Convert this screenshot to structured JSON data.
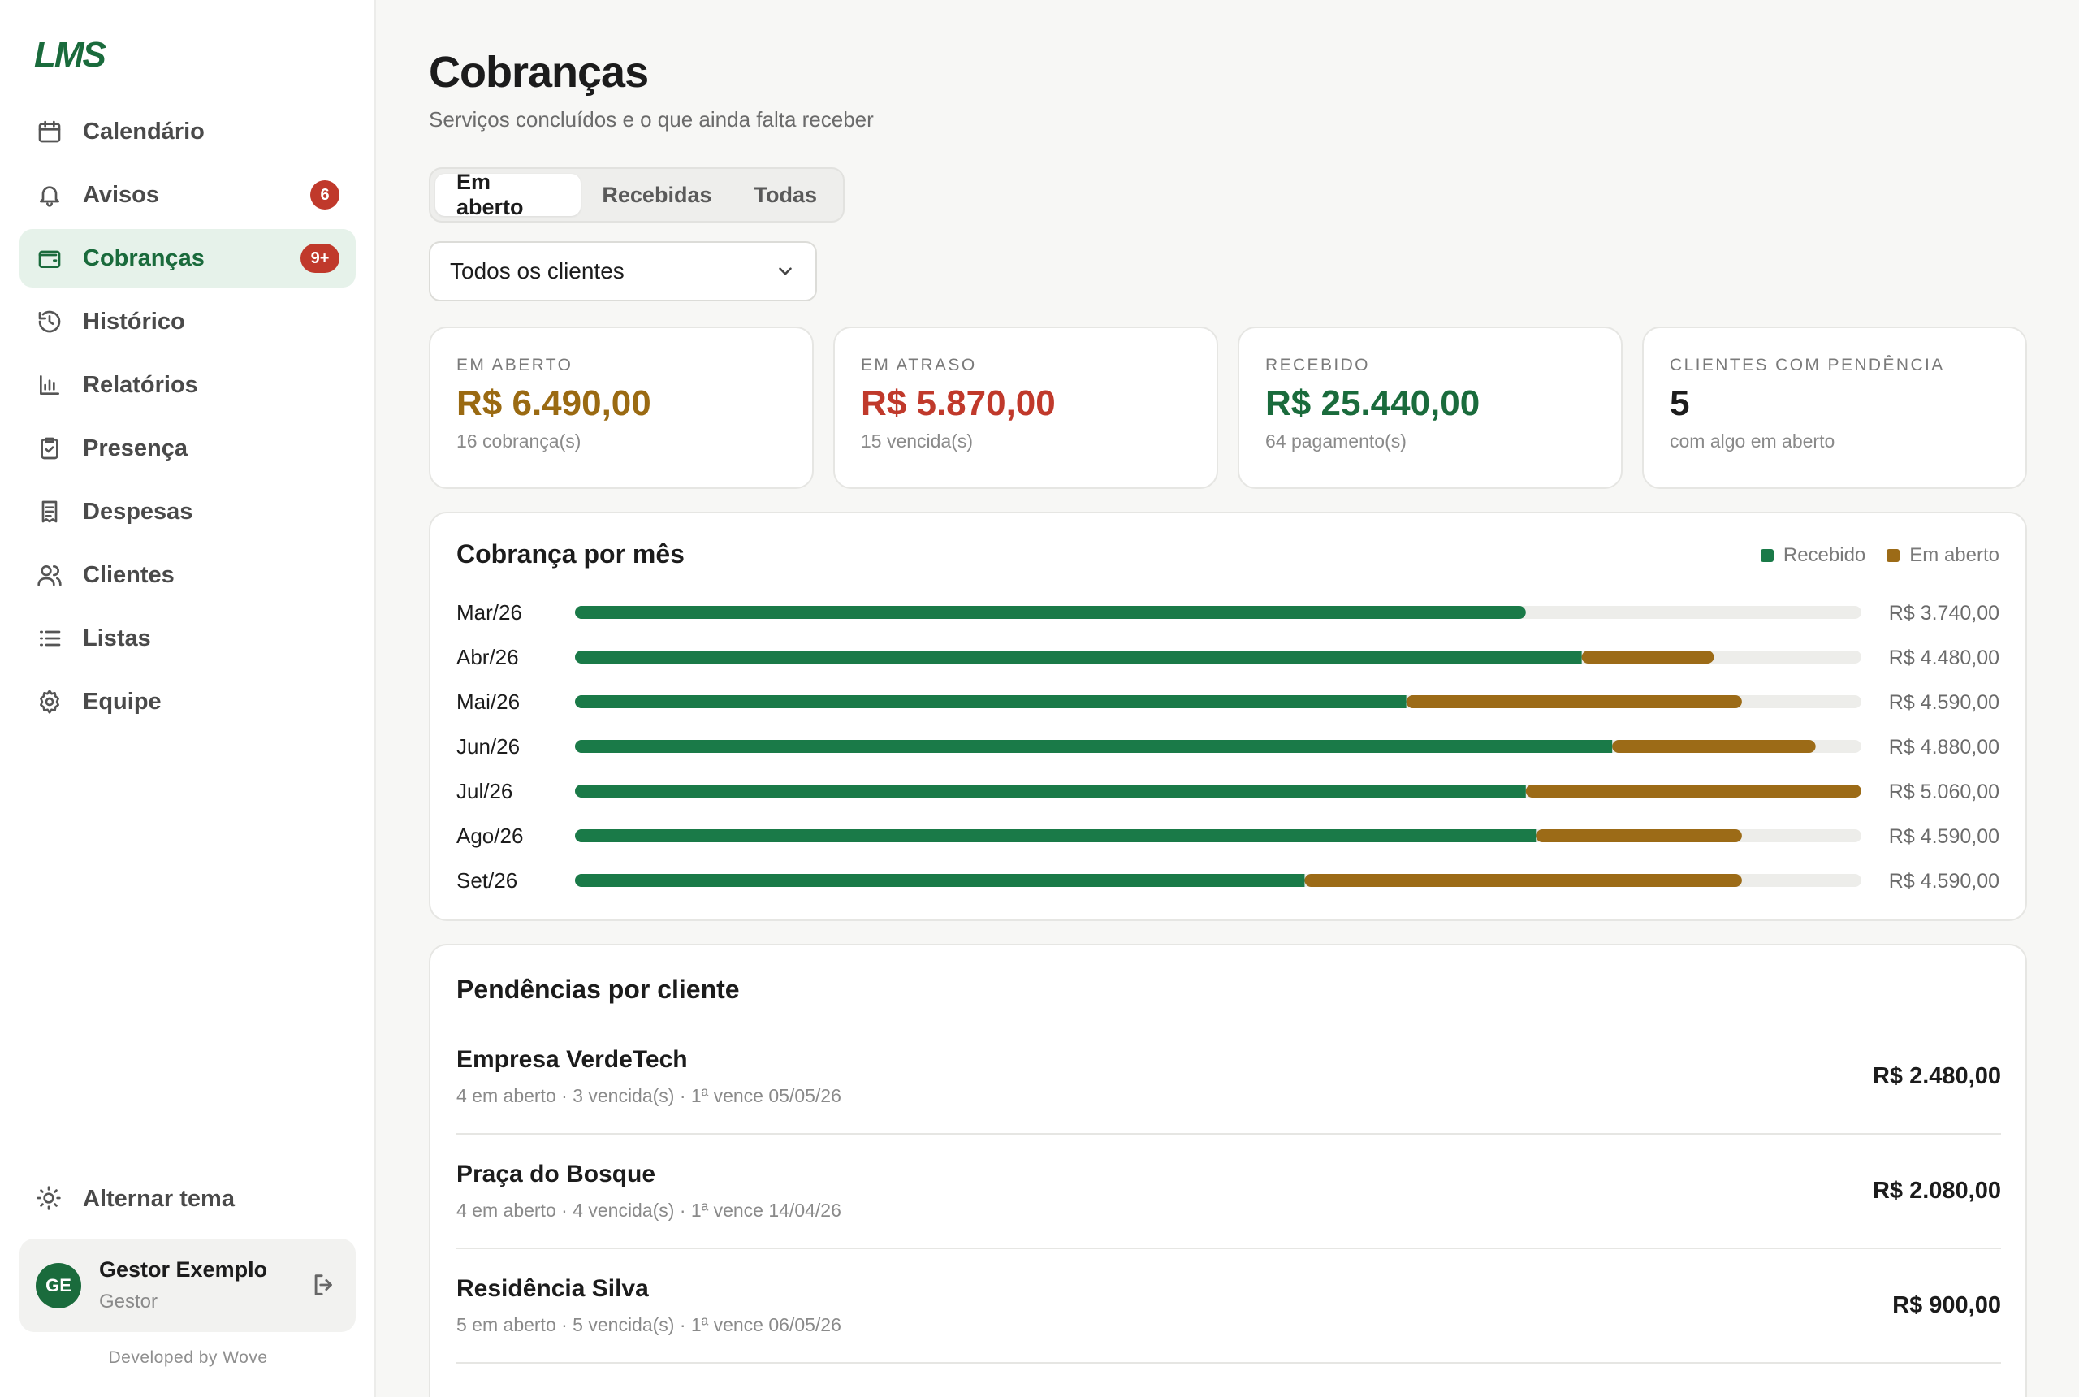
{
  "sidebar": {
    "logo": "LMS",
    "items": [
      {
        "label": "Calendário",
        "icon": "calendar-icon"
      },
      {
        "label": "Avisos",
        "icon": "bell-icon",
        "badge": "6"
      },
      {
        "label": "Cobranças",
        "icon": "wallet-icon",
        "badge": "9+",
        "active": true
      },
      {
        "label": "Histórico",
        "icon": "history-icon"
      },
      {
        "label": "Relatórios",
        "icon": "bar-chart-icon"
      },
      {
        "label": "Presença",
        "icon": "clipboard-check-icon"
      },
      {
        "label": "Despesas",
        "icon": "receipt-icon"
      },
      {
        "label": "Clientes",
        "icon": "users-icon"
      },
      {
        "label": "Listas",
        "icon": "list-icon"
      },
      {
        "label": "Equipe",
        "icon": "gear-icon"
      }
    ],
    "theme_toggle": "Alternar tema",
    "user": {
      "initials": "GE",
      "name": "Gestor Exemplo",
      "role": "Gestor"
    },
    "credit": "Developed by Wove"
  },
  "header": {
    "title": "Cobranças",
    "subtitle": "Serviços concluídos e o que ainda falta receber"
  },
  "tabs": [
    "Em aberto",
    "Recebidas",
    "Todas"
  ],
  "active_tab": "Em aberto",
  "filter": {
    "selected": "Todos os clientes"
  },
  "kpis": [
    {
      "label": "EM ABERTO",
      "value": "R$ 6.490,00",
      "sub": "16 cobrança(s)",
      "color": "#9a6a12"
    },
    {
      "label": "EM ATRASO",
      "value": "R$ 5.870,00",
      "sub": "15 vencida(s)",
      "color": "#c0392b"
    },
    {
      "label": "RECEBIDO",
      "value": "R$ 25.440,00",
      "sub": "64 pagamento(s)",
      "color": "#1a6b3c"
    },
    {
      "label": "CLIENTES COM PENDÊNCIA",
      "value": "5",
      "sub": "com algo em aberto",
      "color": "#1c1c1c"
    }
  ],
  "chart_data": {
    "type": "bar",
    "title": "Cobrança por mês",
    "orientation": "horizontal",
    "stacked": true,
    "categories": [
      "Mar/26",
      "Abr/26",
      "Mai/26",
      "Jun/26",
      "Jul/26",
      "Ago/26",
      "Set/26"
    ],
    "series": [
      {
        "name": "Recebido",
        "color": "#1a7a48",
        "values": [
          3740,
          3960,
          3270,
          4080,
          3740,
          3780,
          2870
        ]
      },
      {
        "name": "Em aberto",
        "color": "#9c6b17",
        "values": [
          0,
          520,
          1320,
          800,
          1320,
          810,
          1720
        ]
      }
    ],
    "totals": [
      "R$ 3.740,00",
      "R$ 4.480,00",
      "R$ 4.590,00",
      "R$ 4.880,00",
      "R$ 5.060,00",
      "R$ 4.590,00",
      "R$ 4.590,00"
    ],
    "xlim": [
      0,
      5060
    ],
    "legend": "top-right",
    "track_color": "#ededea"
  },
  "pendencias": {
    "title": "Pendências por cliente",
    "rows": [
      {
        "name": "Empresa VerdeTech",
        "meta": "4 em aberto · 3 vencida(s) · 1ª vence 05/05/26",
        "amount": "R$ 2.480,00"
      },
      {
        "name": "Praça do Bosque",
        "meta": "4 em aberto · 4 vencida(s) · 1ª vence 14/04/26",
        "amount": "R$ 2.080,00"
      },
      {
        "name": "Residência Silva",
        "meta": "5 em aberto · 5 vencida(s) · 1ª vence 06/05/26",
        "amount": "R$ 900,00"
      }
    ]
  }
}
